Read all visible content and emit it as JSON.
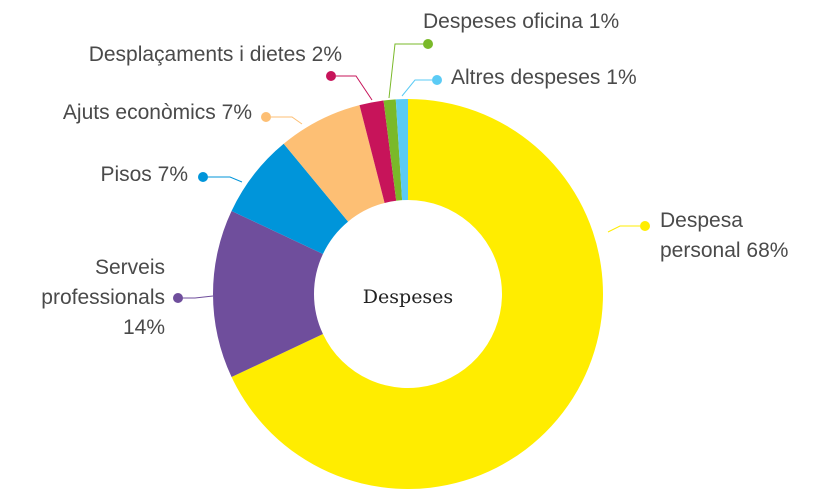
{
  "chart_data": {
    "type": "donut",
    "title": "Despeses",
    "categories": [
      "Despesa personal",
      "Serveis professionals",
      "Pisos",
      "Ajuts econòmics",
      "Desplaçaments i dietes",
      "Despeses oficina",
      "Altres despeses"
    ],
    "values": [
      68,
      14,
      7,
      7,
      2,
      1,
      1
    ],
    "value_labels": [
      "68%",
      "14%",
      "7%",
      "7%",
      "2%",
      "1%",
      "1%"
    ],
    "colors": [
      "#ffed00",
      "#6f4e9c",
      "#0095da",
      "#fdbf74",
      "#c7145a",
      "#7ab929",
      "#5bcbf5"
    ]
  }
}
